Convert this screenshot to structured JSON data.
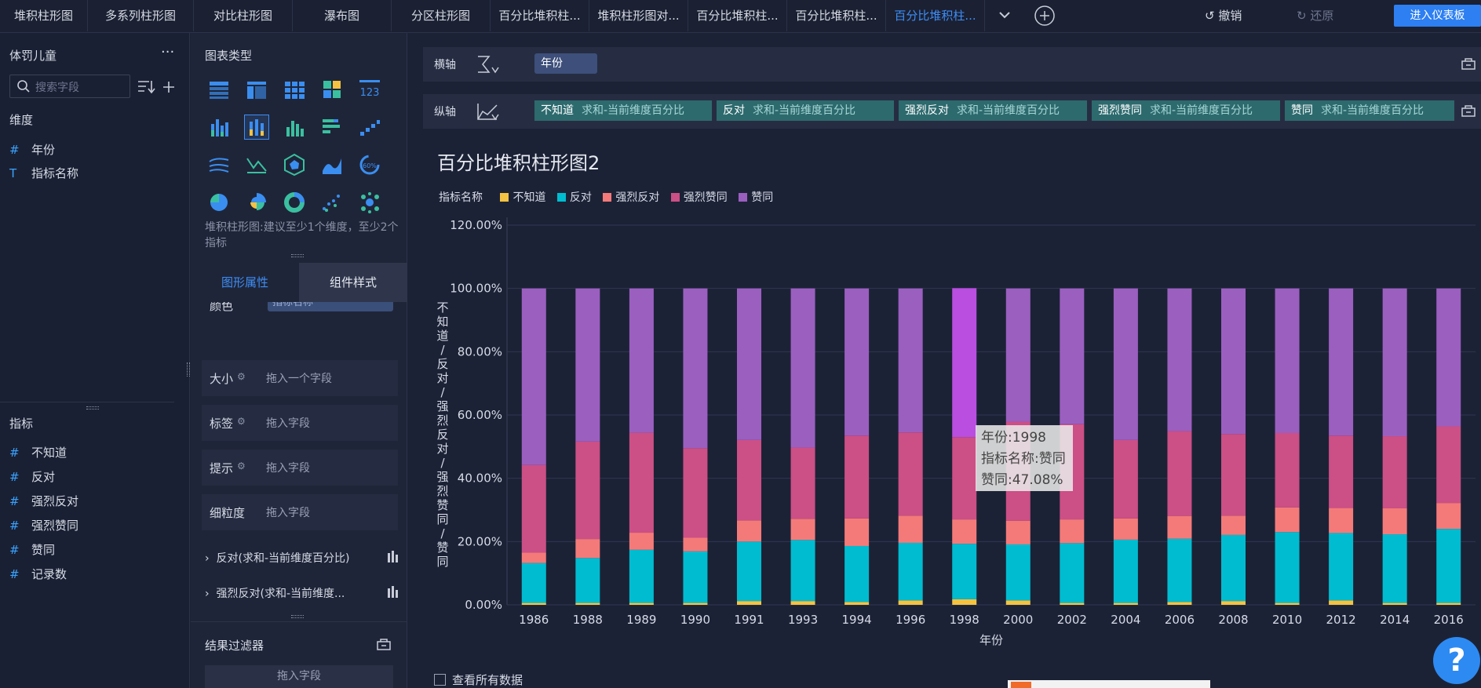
{
  "tabs": [
    "堆积柱形图",
    "多系列柱形图",
    "对比柱形图",
    "瀑布图",
    "分区柱形图",
    "百分比堆积柱...",
    "堆积柱形图对...",
    "百分比堆积柱...",
    "百分比堆积柱...",
    "百分比堆积柱..."
  ],
  "toolbar": {
    "undo": "撤销",
    "redo": "还原",
    "enter_dashboard": "进入仪表板"
  },
  "left": {
    "dataset": "体罚儿童",
    "more": "···",
    "search_placeholder": "搜索字段",
    "dimension_title": "维度",
    "dimensions": [
      {
        "icon": "#",
        "label": "年份"
      },
      {
        "icon": "T",
        "label": "指标名称"
      }
    ],
    "measure_title": "指标",
    "measures": [
      {
        "icon": "#",
        "label": "不知道"
      },
      {
        "icon": "#",
        "label": "反对"
      },
      {
        "icon": "#",
        "label": "强烈反对"
      },
      {
        "icon": "#",
        "label": "强烈赞同"
      },
      {
        "icon": "#",
        "label": "赞同"
      },
      {
        "icon": "#",
        "label": "记录数"
      }
    ]
  },
  "mid": {
    "chart_type_title": "图表类型",
    "hint": "堆积柱形图:建议至少1个维度，至少2个指标",
    "tab_graphic": "图形属性",
    "tab_component": "组件样式",
    "color_label": "颜色",
    "color_value": "指标名称",
    "props": [
      {
        "label": "大小",
        "placeholder": "拖入一个字段"
      },
      {
        "label": "标签",
        "placeholder": "拖入字段"
      },
      {
        "label": "提示",
        "placeholder": "拖入字段"
      },
      {
        "label": "细粒度",
        "placeholder": "拖入字段"
      }
    ],
    "series": [
      "反对(求和-当前维度百分比)",
      "强烈反对(求和-当前维度..."
    ],
    "filter_title": "结果过滤器",
    "filter_placeholder": "拖入字段"
  },
  "axes": {
    "x_label": "横轴",
    "x_field": "年份",
    "y_label": "纵轴",
    "y_fields": [
      {
        "name": "不知道",
        "agg": "求和-当前维度百分比"
      },
      {
        "name": "反对",
        "agg": "求和-当前维度百分比"
      },
      {
        "name": "强烈反对",
        "agg": "求和-当前维度百分比"
      },
      {
        "name": "强烈赞同",
        "agg": "求和-当前维度百分比"
      },
      {
        "name": "赞同",
        "agg": "求和-当前维度百分比"
      }
    ]
  },
  "chart_data": {
    "type": "bar",
    "stacked": "percent",
    "title": "百分比堆积柱形图2",
    "legend_title": "指标名称",
    "xlabel": "年份",
    "ylabel": "不知道/反对/强烈反对/强烈赞同/赞同",
    "ylim": [
      0,
      120
    ],
    "yticks": [
      "0.00%",
      "20.00%",
      "40.00%",
      "60.00%",
      "80.00%",
      "100.00%",
      "120.00%"
    ],
    "categories": [
      "1986",
      "1988",
      "1989",
      "1990",
      "1991",
      "1993",
      "1994",
      "1996",
      "1998",
      "2000",
      "2002",
      "2004",
      "2006",
      "2008",
      "2010",
      "2012",
      "2014",
      "2016"
    ],
    "series": [
      {
        "name": "不知道",
        "color": "#f5c342",
        "values": [
          0.6,
          0.6,
          0.6,
          0.6,
          1.2,
          1.2,
          0.9,
          1.4,
          1.8,
          1.4,
          0.6,
          0.6,
          0.9,
          1.2,
          0.6,
          1.4,
          0.6,
          0.6
        ]
      },
      {
        "name": "反对",
        "color": "#00bcd0",
        "values": [
          12.6,
          14.2,
          16.8,
          16.3,
          18.8,
          19.3,
          17.7,
          18.2,
          17.5,
          17.7,
          18.9,
          20.0,
          20.0,
          20.9,
          22.4,
          21.3,
          21.7,
          23.4
        ]
      },
      {
        "name": "强烈反对",
        "color": "#f47a7a",
        "values": [
          3.3,
          6.0,
          5.4,
          4.3,
          6.7,
          6.7,
          8.7,
          8.6,
          7.7,
          7.5,
          7.5,
          6.7,
          7.2,
          6.1,
          7.8,
          7.9,
          8.2,
          8.2
        ]
      },
      {
        "name": "强烈赞同",
        "color": "#cc4f86",
        "values": [
          27.7,
          30.8,
          31.6,
          28.3,
          25.4,
          22.5,
          26.2,
          26.3,
          26.0,
          31.3,
          30.1,
          24.8,
          26.8,
          25.8,
          23.5,
          22.9,
          22.8,
          24.2
        ]
      },
      {
        "name": "赞同",
        "color": "#9b5fc0",
        "values": [
          55.8,
          48.4,
          45.6,
          50.5,
          47.9,
          50.3,
          46.5,
          45.5,
          47.08,
          42.1,
          42.9,
          47.9,
          45.1,
          46.0,
          45.7,
          46.5,
          46.7,
          43.6
        ]
      }
    ],
    "highlight_color": "#b94ee0"
  },
  "tooltip": {
    "line1": "年份:1998",
    "line2": "指标名称:赞同",
    "line3": "赞同:47.08%"
  },
  "see_all": "查看所有数据",
  "help": "?"
}
